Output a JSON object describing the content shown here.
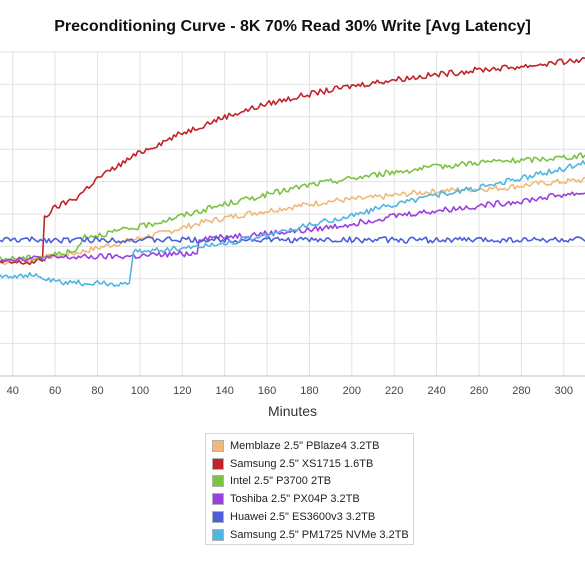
{
  "chart_data": {
    "type": "line",
    "title": "Preconditioning Curve - 8K 70% Read 30% Write [Avg Latency]",
    "xlabel": "Minutes",
    "ylabel": "",
    "xlim": [
      34,
      310
    ],
    "ylim": [
      0,
      10
    ],
    "grid": true,
    "legend": "bottom-center",
    "x_ticks": [
      40,
      60,
      80,
      100,
      120,
      140,
      160,
      180,
      200,
      220,
      240,
      260,
      280,
      300
    ],
    "series": [
      {
        "name": "Memblaze 2.5\" PBlaze4 3.2TB",
        "color": "#f0b97a",
        "x": [
          34,
          50,
          70,
          90,
          110,
          130,
          150,
          170,
          190,
          210,
          230,
          250,
          270,
          290,
          310
        ],
        "y": [
          3.5,
          3.6,
          3.8,
          4.1,
          4.4,
          4.75,
          5.0,
          5.2,
          5.4,
          5.5,
          5.65,
          5.75,
          5.8,
          5.95,
          6.05
        ]
      },
      {
        "name": "Samsung 2.5\" XS1715 1.6TB",
        "color": "#c0242a",
        "x": [
          34,
          40,
          50,
          54,
          55,
          60,
          70,
          80,
          90,
          100,
          120,
          140,
          160,
          180,
          200,
          220,
          240,
          260,
          280,
          300,
          310
        ],
        "y": [
          3.5,
          3.5,
          3.5,
          3.6,
          4.9,
          5.2,
          5.5,
          6.1,
          6.5,
          6.9,
          7.5,
          8.0,
          8.4,
          8.7,
          8.95,
          9.15,
          9.3,
          9.45,
          9.55,
          9.7,
          9.75
        ]
      },
      {
        "name": "Intel 2.5\" P3700 2TB",
        "color": "#7dc242",
        "x": [
          34,
          50,
          60,
          70,
          73,
          80,
          100,
          120,
          140,
          160,
          180,
          200,
          220,
          240,
          260,
          280,
          300,
          310
        ],
        "y": [
          3.6,
          3.65,
          3.75,
          3.85,
          4.3,
          4.35,
          4.6,
          4.95,
          5.3,
          5.6,
          5.9,
          6.1,
          6.3,
          6.45,
          6.6,
          6.65,
          6.75,
          6.8
        ]
      },
      {
        "name": "Toshiba 2.5\" PX04P 3.2TB",
        "color": "#9b3fe0",
        "x": [
          34,
          60,
          100,
          127,
          128,
          150,
          180,
          200,
          220,
          240,
          260,
          280,
          300,
          310
        ],
        "y": [
          3.6,
          3.65,
          3.7,
          3.8,
          4.25,
          4.35,
          4.5,
          4.7,
          4.95,
          5.1,
          5.25,
          5.4,
          5.6,
          5.65
        ]
      },
      {
        "name": "Huawei 2.5\" ES3600v3 3.2TB",
        "color": "#4b5fdc",
        "x": [
          34,
          100,
          160,
          220,
          280,
          310
        ],
        "y": [
          4.2,
          4.2,
          4.2,
          4.2,
          4.2,
          4.2
        ]
      },
      {
        "name": "Samsung 2.5\" PM1725 NVMe 3.2TB",
        "color": "#4fb6e3",
        "x": [
          34,
          50,
          60,
          80,
          95,
          97,
          100,
          120,
          140,
          160,
          180,
          200,
          220,
          240,
          260,
          280,
          300,
          310
        ],
        "y": [
          3.1,
          3.1,
          2.9,
          2.85,
          2.85,
          3.8,
          3.85,
          3.95,
          4.1,
          4.35,
          4.65,
          4.95,
          5.3,
          5.6,
          5.8,
          6.1,
          6.4,
          6.6
        ]
      }
    ]
  }
}
